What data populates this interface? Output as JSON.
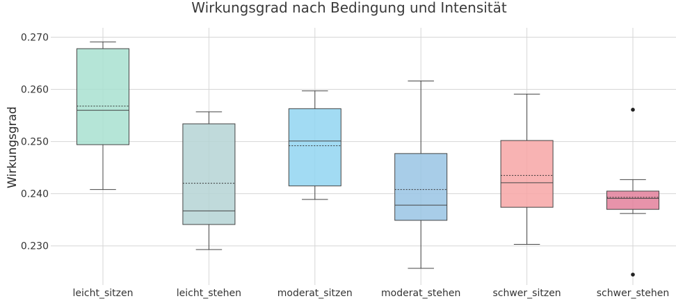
{
  "chart_data": {
    "type": "box",
    "title": "Wirkungsgrad nach Bedingung und Intensität",
    "xlabel": "",
    "ylabel": "Wirkungsgrad",
    "ylim": [
      0.2225,
      0.2718
    ],
    "yticks": [
      0.23,
      0.24,
      0.25,
      0.26,
      0.27
    ],
    "ytick_labels": [
      "0.230",
      "0.240",
      "0.250",
      "0.260",
      "0.270"
    ],
    "grid": true,
    "categories": [
      "leicht_sitzen",
      "leicht_stehen",
      "moderat_sitzen",
      "moderat_stehen",
      "schwer_sitzen",
      "schwer_stehen"
    ],
    "boxes": [
      {
        "category": "leicht_sitzen",
        "q1": 0.2494,
        "median": 0.256,
        "mean": 0.2568,
        "q3": 0.2678,
        "whisker_low": 0.2408,
        "whisker_high": 0.2691,
        "outliers": [],
        "color": "#a8e0d0"
      },
      {
        "category": "leicht_stehen",
        "q1": 0.2341,
        "median": 0.2367,
        "mean": 0.242,
        "q3": 0.2534,
        "whisker_low": 0.2293,
        "whisker_high": 0.2557,
        "outliers": [],
        "color": "#b5d3d5"
      },
      {
        "category": "moderat_sitzen",
        "q1": 0.2415,
        "median": 0.2501,
        "mean": 0.2492,
        "q3": 0.2563,
        "whisker_low": 0.2389,
        "whisker_high": 0.2597,
        "outliers": [],
        "color": "#92d5f1"
      },
      {
        "category": "moderat_stehen",
        "q1": 0.2349,
        "median": 0.2378,
        "mean": 0.2408,
        "q3": 0.2477,
        "whisker_low": 0.2257,
        "whisker_high": 0.2616,
        "outliers": [],
        "color": "#99c4e4"
      },
      {
        "category": "schwer_sitzen",
        "q1": 0.2374,
        "median": 0.2421,
        "mean": 0.2435,
        "q3": 0.2502,
        "whisker_low": 0.2303,
        "whisker_high": 0.2591,
        "outliers": [],
        "color": "#f7a6a6"
      },
      {
        "category": "schwer_stehen",
        "q1": 0.237,
        "median": 0.2391,
        "mean": 0.2393,
        "q3": 0.2405,
        "whisker_low": 0.2362,
        "whisker_high": 0.2427,
        "outliers": [
          0.2561,
          0.2245
        ],
        "color": "#e3809b"
      }
    ]
  }
}
